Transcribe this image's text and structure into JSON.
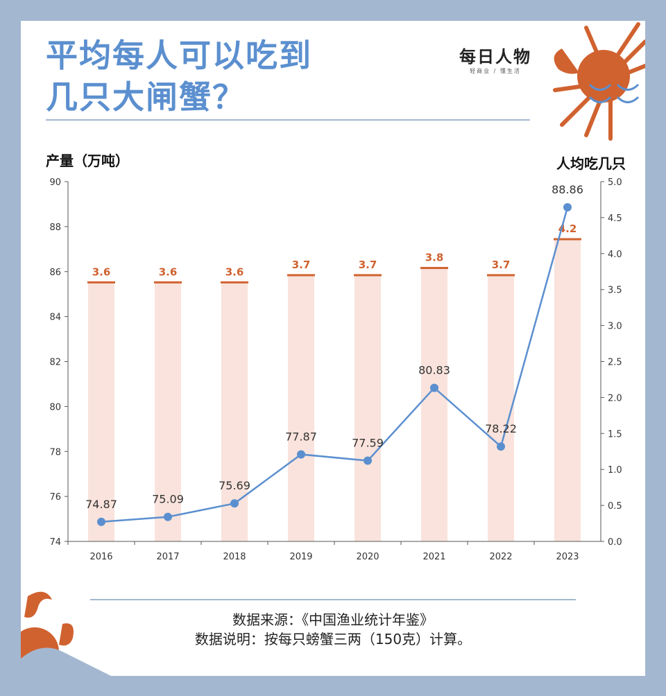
{
  "title_lines": [
    "平均每人可以吃到",
    "几只大闸蟹？"
  ],
  "logo": {
    "main": "每日人物",
    "sub": "轻商业 / 懂生活"
  },
  "footer": {
    "source": "数据来源：《中国渔业统计年鉴》",
    "note": "数据说明：按每只螃蟹三两（150克）计算。"
  },
  "colors": {
    "line": "#5b8fcf",
    "bar": "#f9e3dc",
    "bar_top": "#d0622f",
    "title": "#5b8fcf",
    "background": "#a3b7d0"
  },
  "chart_data": {
    "type": "bar+line",
    "categories": [
      "2016",
      "2017",
      "2018",
      "2019",
      "2020",
      "2021",
      "2022",
      "2023"
    ],
    "y_left": {
      "label": "产量（万吨）",
      "range": [
        74,
        90
      ],
      "ticks": [
        "74",
        "76",
        "78",
        "80",
        "82",
        "84",
        "86",
        "88",
        "90"
      ]
    },
    "y_right": {
      "label": "人均吃几只",
      "range": [
        0,
        5
      ],
      "ticks": [
        "0.0",
        "0.5",
        "1.0",
        "1.5",
        "2.0",
        "2.5",
        "3.0",
        "3.5",
        "4.0",
        "4.5",
        "5.0"
      ]
    },
    "series": [
      {
        "type": "line",
        "axis": "left",
        "values": [
          74.87,
          75.09,
          75.69,
          77.87,
          77.59,
          80.83,
          78.22,
          88.86
        ],
        "labels": [
          "74.87",
          "75.09",
          "75.69",
          "77.87",
          "77.59",
          "80.83",
          "78.22",
          "88.86"
        ]
      },
      {
        "type": "bar",
        "axis": "right",
        "values": [
          3.6,
          3.6,
          3.6,
          3.7,
          3.7,
          3.8,
          3.7,
          4.2
        ],
        "labels": [
          "3.6",
          "3.6",
          "3.6",
          "3.7",
          "3.7",
          "3.8",
          "3.7",
          "4.2"
        ]
      }
    ],
    "grid": false
  }
}
